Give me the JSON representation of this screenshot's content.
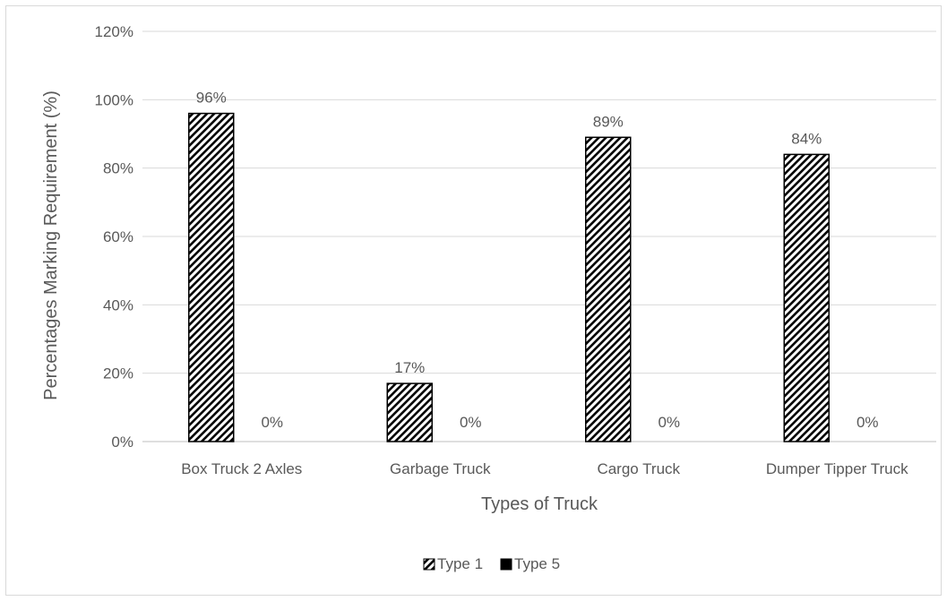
{
  "chart_data": {
    "type": "bar",
    "title": "",
    "xlabel": "Types of Truck",
    "ylabel": "Percentages Marking Requirement (%)",
    "ylim": [
      0,
      1.2
    ],
    "yticks": [
      0,
      0.2,
      0.4,
      0.6,
      0.8,
      1.0,
      1.2
    ],
    "ytick_labels": [
      "0%",
      "20%",
      "40%",
      "60%",
      "80%",
      "100%",
      "120%"
    ],
    "categories": [
      "Box Truck 2 Axles",
      "Garbage Truck",
      "Cargo Truck",
      "Dumper Tipper Truck"
    ],
    "series": [
      {
        "name": "Type 1",
        "values": [
          0.96,
          0.17,
          0.89,
          0.84
        ],
        "labels": [
          "96%",
          "17%",
          "89%",
          "84%"
        ],
        "fill": "diagonal-hatch",
        "color": "#000000"
      },
      {
        "name": "Type 5",
        "values": [
          0,
          0,
          0,
          0
        ],
        "labels": [
          "0%",
          "0%",
          "0%",
          "0%"
        ],
        "fill": "solid",
        "color": "#000000"
      }
    ],
    "grid": true,
    "grid_color": "#d9d9d9",
    "legend_position": "bottom"
  }
}
